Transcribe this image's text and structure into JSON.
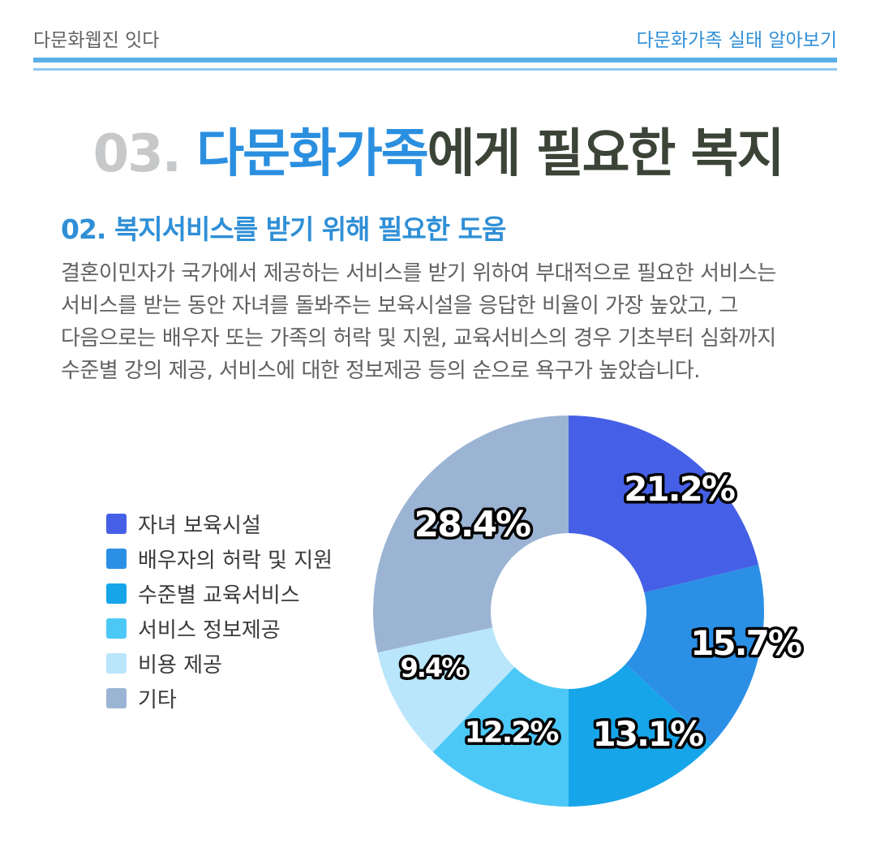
{
  "header": {
    "brand": "다문화웹진 잇다",
    "series_title": "다문화가족 실태 알아보기"
  },
  "title": {
    "number": "03.",
    "highlight": "다문화가족",
    "rest": "에게 필요한 복지"
  },
  "section": {
    "title": "02. 복지서비스를 받기 위해 필요한 도움",
    "body": "결혼이민자가 국가에서 제공하는 서비스를 받기 위하여 부대적으로 필요한 서비스는 서비스를 받는 동안 자녀를 돌봐주는 보육시설을 응답한 비율이 가장 높았고, 그 다음으로는 배우자 또는 가족의 허락 및 지원, 교육서비스의 경우 기초부터 심화까지 수준별 강의 제공, 서비스에 대한 정보제공 등의 순으로 욕구가 높았습니다."
  },
  "chart_data": {
    "type": "pie",
    "donut": true,
    "categories": [
      "자녀 보육시설",
      "배우자의 허락 및 지원",
      "수준별 교육서비스",
      "서비스 정보제공",
      "비용 제공",
      "기타"
    ],
    "values": [
      21.2,
      15.7,
      13.1,
      12.2,
      9.4,
      28.4
    ],
    "value_labels": [
      "21.2%",
      "15.7%",
      "13.1%",
      "12.2%",
      "9.4%",
      "28.4%"
    ],
    "colors": [
      "#4560e6",
      "#2b8fe6",
      "#17a5ea",
      "#4cc8f7",
      "#b9e6fb",
      "#9bb4d4"
    ],
    "legend_position": "left",
    "start": "top",
    "direction": "clockwise"
  }
}
